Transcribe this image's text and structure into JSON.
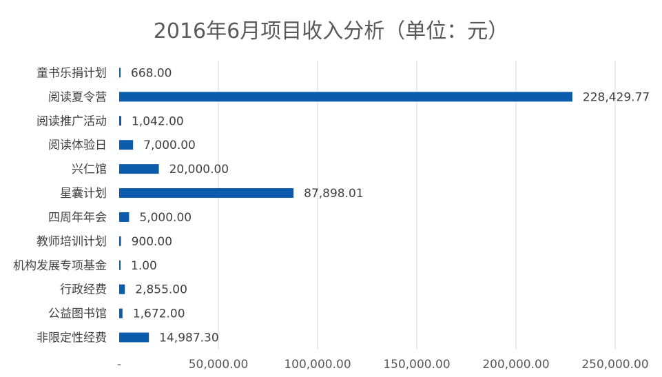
{
  "chart_data": {
    "type": "bar",
    "orientation": "horizontal",
    "title": "2016年6月项目收入分析（单位：元）",
    "categories": [
      "童书乐捐计划",
      "阅读夏令营",
      "阅读推广活动",
      "阅读体验日",
      "兴仁馆",
      "星囊计划",
      "四周年年会",
      "教师培训计划",
      "机构发展专项基金",
      "行政经费",
      "公益图书馆",
      "非限定性经费"
    ],
    "values": [
      668.0,
      228429.77,
      1042.0,
      7000.0,
      20000.0,
      87898.01,
      5000.0,
      900.0,
      1.0,
      2855.0,
      1672.0,
      14987.3
    ],
    "value_labels": [
      "668.00",
      "228,429.77",
      "1,042.00",
      "7,000.00",
      "20,000.00",
      "87,898.01",
      "5,000.00",
      "900.00",
      "1.00",
      "2,855.00",
      "1,672.00",
      "14,987.30"
    ],
    "xlim": [
      0,
      250000
    ],
    "xticks": [
      0,
      50000,
      100000,
      150000,
      200000,
      250000
    ],
    "xtick_labels": [
      "-",
      "50,000.00",
      "100,000.00",
      "150,000.00",
      "200,000.00",
      "250,000.00"
    ],
    "grid": true,
    "legend": "none",
    "bar_color": "#0B5CAD",
    "grid_color": "#D9D9D9"
  }
}
